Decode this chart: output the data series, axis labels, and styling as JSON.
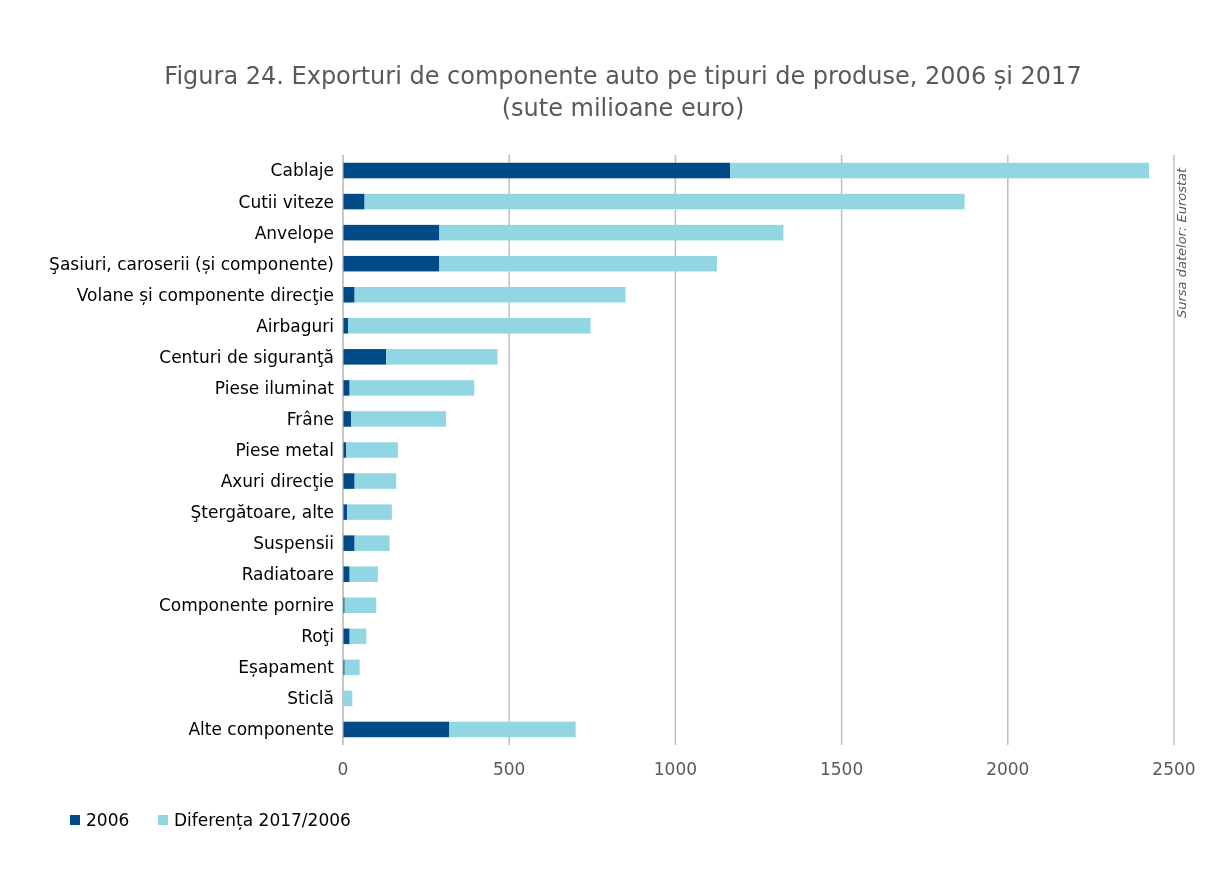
{
  "chart_data": {
    "type": "bar",
    "orientation": "horizontal",
    "stacked": true,
    "title": "Figura 24. Exporturi de componente auto pe tipuri de produse, 2006 și 2017",
    "subtitle": "(sute milioane euro)",
    "categories": [
      "Cablaje",
      "Cutii viteze",
      "Anvelope",
      "Şasiuri, caroserii (și componente)",
      "Volane și componente direcţie",
      "Airbaguri",
      "Centuri de siguranţă",
      "Piese iluminat",
      "Frâne",
      "Piese metal",
      "Axuri direcţie",
      "Ştergătoare, alte",
      "Suspensii",
      "Radiatoare",
      "Componente pornire",
      "Roţi",
      "Eșapament",
      "Sticlă",
      "Alte componente"
    ],
    "series": [
      {
        "name": "2006",
        "color": "#004b87",
        "values": [
          1165,
          65,
          290,
          290,
          35,
          15,
          130,
          20,
          25,
          10,
          35,
          12,
          35,
          20,
          5,
          20,
          5,
          null,
          320
        ]
      },
      {
        "name": "Diferența 2017/2006",
        "color": "#93d6e3",
        "values": [
          1260,
          1805,
          1035,
          835,
          815,
          730,
          335,
          375,
          285,
          155,
          125,
          135,
          105,
          85,
          95,
          50,
          45,
          28,
          380
        ]
      }
    ],
    "xlim": [
      0,
      2500
    ],
    "xticks": [
      0,
      500,
      1000,
      1500,
      2000,
      2500
    ],
    "grid": "x",
    "legend": "bottom left",
    "annotations": [
      "Sursa datelor: Eurostat"
    ]
  }
}
